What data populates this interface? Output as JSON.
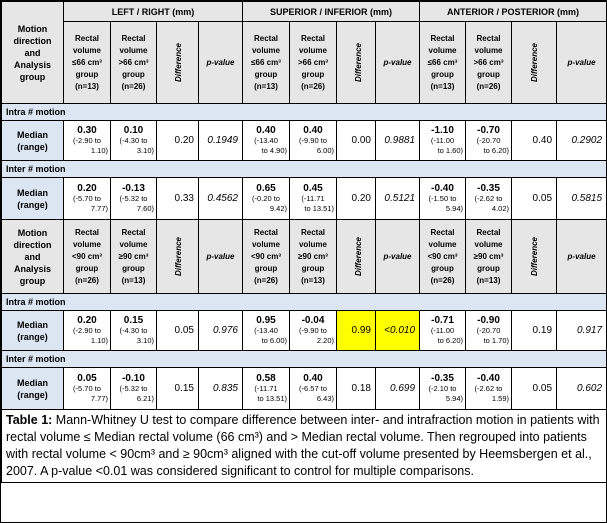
{
  "headers": {
    "group_col": [
      "Motion",
      "direction",
      "and",
      "Analysis",
      "group"
    ],
    "lr": "LEFT / RIGHT (mm)",
    "si": "SUPERIOR / INFERIOR (mm)",
    "ap": "ANTERIOR / POSTERIOR (mm)",
    "difference": "Difference",
    "pvalue": "p-value"
  },
  "sub_a": [
    "Rectal",
    "volume",
    "≤66 cm³",
    "group",
    "(n=13)"
  ],
  "sub_b": [
    "Rectal",
    "volume",
    ">66 cm³",
    "group",
    "(n=26)"
  ],
  "sub_c": [
    "Rectal",
    "volume",
    "<90 cm³",
    "group",
    "(n=26)"
  ],
  "sub_d": [
    "Rectal",
    "volume",
    "≥90 cm³",
    "group",
    "(n=13)"
  ],
  "section_intra": "Intra # motion",
  "section_inter": "Inter # motion",
  "row_label": [
    "Median",
    "(range)"
  ],
  "rows": {
    "g1_intra": {
      "lr": {
        "a": "0.30",
        "ar": [
          "(-2.90 to",
          "1.10)"
        ],
        "b": "0.10",
        "br": [
          "(-4.30 to",
          "3.10)"
        ],
        "diff": "0.20",
        "p": "0.1949"
      },
      "si": {
        "a": "0.40",
        "ar": [
          "(-13.40",
          "to 4.90)"
        ],
        "b": "0.40",
        "br": [
          "(-9.90 to",
          "6.00)"
        ],
        "diff": "0.00",
        "p": "0.9881"
      },
      "ap": {
        "a": "-1.10",
        "ar": [
          "(-11.00",
          "to 1.60)"
        ],
        "b": "-0.70",
        "br": [
          "(-20.70",
          "to 6.20)"
        ],
        "diff": "0.40",
        "p": "0.2902"
      }
    },
    "g1_inter": {
      "lr": {
        "a": "0.20",
        "ar": [
          "(-5.70 to",
          "7.77)"
        ],
        "b": "-0.13",
        "br": [
          "(-5.32 to",
          "7.60)"
        ],
        "diff": "0.33",
        "p": "0.4562"
      },
      "si": {
        "a": "0.65",
        "ar": [
          "(-0.20 to",
          "9.42)"
        ],
        "b": "0.45",
        "br": [
          "(-11.71",
          "to 13.51)"
        ],
        "diff": "0.20",
        "p": "0.5121"
      },
      "ap": {
        "a": "-0.40",
        "ar": [
          "(-1.50 to",
          "5.94)"
        ],
        "b": "-0.35",
        "br": [
          "(-2.62 to",
          "4.02)"
        ],
        "diff": "0.05",
        "p": "0.5815"
      }
    },
    "g2_intra": {
      "lr": {
        "a": "0.20",
        "ar": [
          "(-2.90 to",
          "1.10)"
        ],
        "b": "0.15",
        "br": [
          "(-4.30 to",
          "3.10)"
        ],
        "diff": "0.05",
        "p": "0.976"
      },
      "si": {
        "a": "0.95",
        "ar": [
          "(-13.40",
          "to 6.00)"
        ],
        "b": "-0.04",
        "br": [
          "(-9.90 to",
          "2.20)"
        ],
        "diff": "0.99",
        "p": "<0.010"
      },
      "ap": {
        "a": "-0.71",
        "ar": [
          "(-11.00",
          "to 6.20)"
        ],
        "b": "-0.90",
        "br": [
          "(-20.70",
          "to 1.70)"
        ],
        "diff": "0.19",
        "p": "0.917"
      }
    },
    "g2_inter": {
      "lr": {
        "a": "0.05",
        "ar": [
          "(-5.70 to",
          "7.77)"
        ],
        "b": "-0.10",
        "br": [
          "(-5.32 to",
          "6.21)"
        ],
        "diff": "0.15",
        "p": "0.835"
      },
      "si": {
        "a": "0.58",
        "ar": [
          "(-11.71",
          "to 13.51)"
        ],
        "b": "0.40",
        "br": [
          "(-6.57 to",
          "6.43)"
        ],
        "diff": "0.18",
        "p": "0.699"
      },
      "ap": {
        "a": "-0.35",
        "ar": [
          "(-2.10 to",
          "5.94)"
        ],
        "b": "-0.40",
        "br": [
          "(-2.62 to",
          "1.59)"
        ],
        "diff": "0.05",
        "p": "0.602"
      }
    }
  },
  "caption": {
    "label": "Table 1:",
    "text": " Mann-Whitney U test to compare difference between inter- and intrafraction motion in patients with rectal volume ≤ Median rectal volume (66 cm³) and > Median rectal volume. Then regrouped into patients with rectal volume < 90cm³ and ≥ 90cm³ aligned with the cut-off volume presented by Heemsbergen et al., 2007. A p-value <0.01 was considered significant to control for multiple comparisons."
  },
  "highlight_color": "#ffff00"
}
